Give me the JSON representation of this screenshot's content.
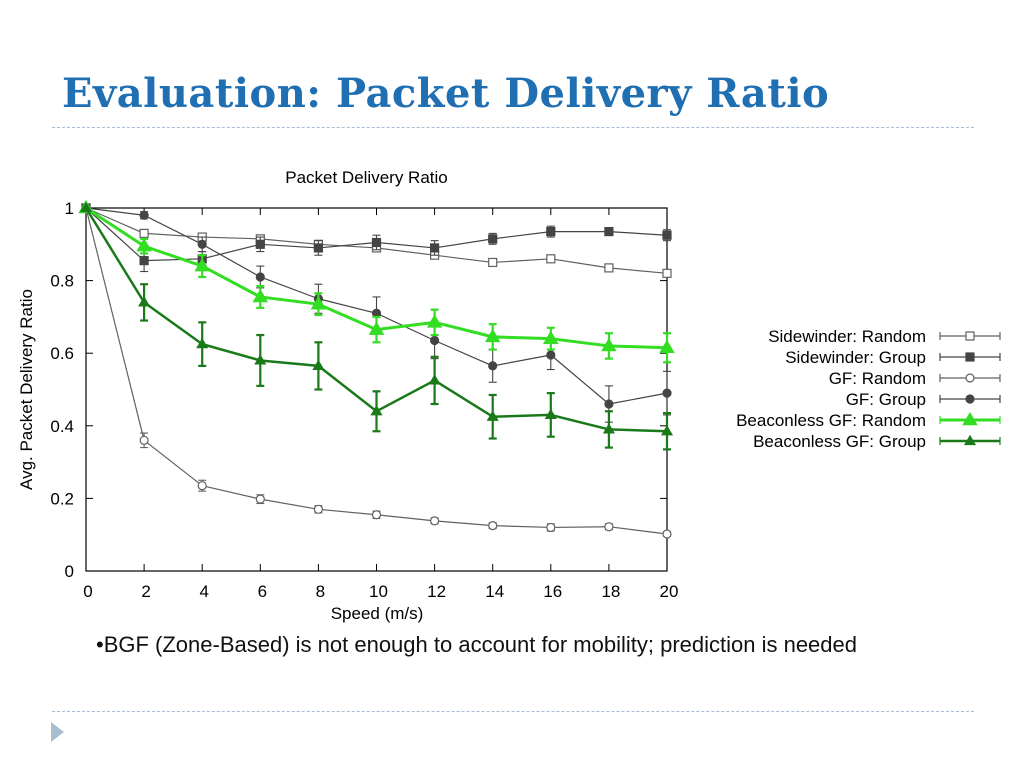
{
  "slide": {
    "title": "Evaluation: Packet Delivery Ratio",
    "bullet": "•BGF (Zone-Based) is not enough to account for mobility; prediction is needed"
  },
  "chart_data": {
    "type": "line",
    "title": "Packet Delivery Ratio",
    "xlabel": "Speed (m/s)",
    "ylabel": "Avg. Packet Delivery Ratio",
    "x": [
      0,
      2,
      4,
      6,
      8,
      10,
      12,
      14,
      16,
      18,
      20
    ],
    "xlim": [
      0,
      20
    ],
    "ylim": [
      0,
      1
    ],
    "xticks": [
      0,
      2,
      4,
      6,
      8,
      10,
      12,
      14,
      16,
      18,
      20
    ],
    "yticks": [
      0,
      0.2,
      0.4,
      0.6,
      0.8,
      1
    ],
    "ytick_labels": [
      "0",
      "0.2",
      "0.4",
      "0.6",
      "0.8",
      "1"
    ],
    "grid": false,
    "legend_position": "right",
    "series": [
      {
        "name": "Sidewinder: Random",
        "values": [
          1.0,
          0.93,
          0.92,
          0.915,
          0.9,
          0.89,
          0.87,
          0.85,
          0.86,
          0.835,
          0.82
        ],
        "errors": [
          0,
          0.01,
          0.01,
          0.01,
          0.01,
          0.01,
          0.01,
          0.01,
          0.01,
          0.01,
          0.01
        ],
        "color": "#606060",
        "marker": "square-open",
        "width": 1.2
      },
      {
        "name": "Sidewinder: Group",
        "values": [
          1.0,
          0.855,
          0.86,
          0.9,
          0.89,
          0.905,
          0.89,
          0.915,
          0.935,
          0.935,
          0.925
        ],
        "errors": [
          0,
          0.03,
          0.02,
          0.02,
          0.02,
          0.02,
          0.02,
          0.015,
          0.015,
          0.01,
          0.015
        ],
        "color": "#444444",
        "marker": "square-filled",
        "width": 1.2
      },
      {
        "name": "GF: Random",
        "values": [
          1.0,
          0.36,
          0.235,
          0.198,
          0.17,
          0.155,
          0.138,
          0.125,
          0.12,
          0.122,
          0.102
        ],
        "errors": [
          0,
          0.02,
          0.015,
          0.012,
          0.01,
          0.01,
          0.008,
          0.008,
          0.01,
          0.008,
          0.006
        ],
        "color": "#606060",
        "marker": "circle-open",
        "width": 1.2
      },
      {
        "name": "GF: Group",
        "values": [
          1.0,
          0.98,
          0.9,
          0.81,
          0.75,
          0.71,
          0.635,
          0.565,
          0.595,
          0.46,
          0.49
        ],
        "errors": [
          0,
          0.01,
          0.02,
          0.03,
          0.04,
          0.045,
          0.05,
          0.045,
          0.04,
          0.05,
          0.06
        ],
        "color": "#444444",
        "marker": "circle-filled",
        "width": 1.2
      },
      {
        "name": "Beaconless GF: Random",
        "values": [
          1.0,
          0.895,
          0.84,
          0.755,
          0.735,
          0.665,
          0.685,
          0.645,
          0.64,
          0.62,
          0.615
        ],
        "errors": [
          0,
          0.02,
          0.03,
          0.03,
          0.03,
          0.035,
          0.035,
          0.035,
          0.03,
          0.035,
          0.04
        ],
        "color": "#33dd22",
        "marker": "triangle-filled",
        "width": 3
      },
      {
        "name": "Beaconless GF: Group",
        "values": [
          1.0,
          0.74,
          0.625,
          0.58,
          0.565,
          0.44,
          0.525,
          0.425,
          0.43,
          0.39,
          0.385
        ],
        "errors": [
          0,
          0.05,
          0.06,
          0.07,
          0.065,
          0.055,
          0.065,
          0.06,
          0.06,
          0.05,
          0.05
        ],
        "color": "#1a7a1a",
        "marker": "triangle-filled",
        "width": 2.5
      }
    ]
  }
}
